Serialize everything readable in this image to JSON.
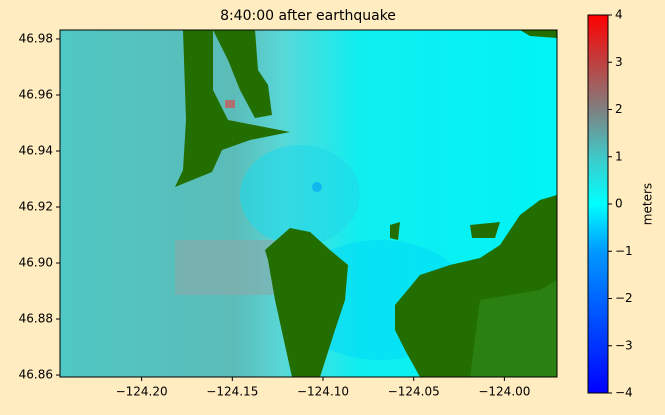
{
  "chart_data": {
    "type": "image",
    "title": "8:40:00 after earthquake",
    "xlim": [
      -124.245,
      -123.971
    ],
    "xticks": [
      {
        "value": -124.2,
        "label": "−124.20"
      },
      {
        "value": -124.15,
        "label": "−124.15"
      },
      {
        "value": -124.1,
        "label": "−124.10"
      },
      {
        "value": -124.05,
        "label": "−124.05"
      },
      {
        "value": -124.0,
        "label": "−124.00"
      }
    ],
    "ylim": [
      46.8593,
      46.9832
    ],
    "yticks": [
      {
        "value": 46.86,
        "label": "46.86"
      },
      {
        "value": 46.88,
        "label": "46.88"
      },
      {
        "value": 46.9,
        "label": "46.90"
      },
      {
        "value": 46.92,
        "label": "46.92"
      },
      {
        "value": 46.94,
        "label": "46.94"
      },
      {
        "value": 46.96,
        "label": "46.96"
      },
      {
        "value": 46.98,
        "label": "46.98"
      }
    ],
    "colorbar": {
      "label": "meters",
      "lim": [
        -4,
        4
      ],
      "ticks": [
        {
          "value": -4,
          "label": "−4"
        },
        {
          "value": -3,
          "label": "−3"
        },
        {
          "value": -2,
          "label": "−2"
        },
        {
          "value": -1,
          "label": "−1"
        },
        0,
        1,
        2,
        3,
        4
      ],
      "colormap": [
        {
          "value": -4,
          "color": "#0000ff"
        },
        {
          "value": -1,
          "color": "#0099ff"
        },
        {
          "value": 0,
          "color": "#00ffff"
        },
        {
          "value": 1,
          "color": "#40c8c8"
        },
        {
          "value": 2,
          "color": "#808080"
        },
        {
          "value": 4,
          "color": "#ff0000"
        }
      ]
    }
  }
}
